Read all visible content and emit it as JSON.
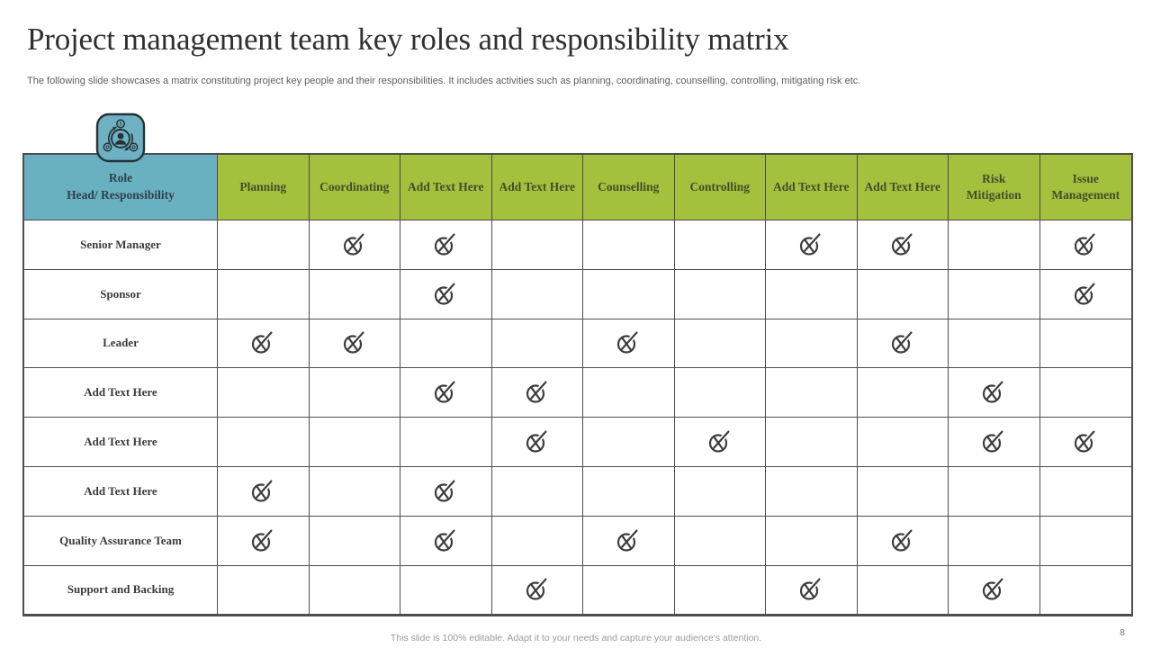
{
  "slide": {
    "title": "Project management team key roles and responsibility matrix",
    "subtitle": "The following slide showcases a matrix constituting project key people and their responsibilities. It includes activities such as planning, coordinating, counselling, controlling, mitigating risk etc.",
    "footer": "This slide is 100% editable. Adapt it to your needs and capture your audience's attention.",
    "page_number": "8"
  },
  "colors": {
    "header_blue": "#69b0c1",
    "header_green": "#a3c13c",
    "header_green_text": "#424d2b",
    "header_blue_text": "#2f4149",
    "grid_border": "#4d4d4d",
    "mark_color": "#3d3d3d",
    "badge_fill": "#6db1c3",
    "badge_stroke": "#263238"
  },
  "icons": {
    "badge": "team-resource-management-icon",
    "mark": "check-cross-circle-icon"
  },
  "table": {
    "corner_header": "Role\nHead/ Responsibility",
    "columns": [
      "Planning",
      "Coordinating",
      "Add Text Here",
      "Add Text Here",
      "Counselling",
      "Controlling",
      "Add Text Here",
      "Add Text Here",
      "Risk Mitigation",
      "Issue Management"
    ],
    "rows": [
      {
        "label": "Senior Manager",
        "marks": [
          0,
          1,
          1,
          0,
          0,
          0,
          1,
          1,
          0,
          1
        ]
      },
      {
        "label": "Sponsor",
        "marks": [
          0,
          0,
          1,
          0,
          0,
          0,
          0,
          0,
          0,
          1
        ]
      },
      {
        "label": "Leader",
        "marks": [
          1,
          1,
          0,
          0,
          1,
          0,
          0,
          1,
          0,
          0
        ]
      },
      {
        "label": "Add Text Here",
        "marks": [
          0,
          0,
          1,
          1,
          0,
          0,
          0,
          0,
          1,
          0
        ]
      },
      {
        "label": "Add Text Here",
        "marks": [
          0,
          0,
          0,
          1,
          0,
          1,
          0,
          0,
          1,
          1
        ]
      },
      {
        "label": "Add Text Here",
        "marks": [
          1,
          0,
          1,
          0,
          0,
          0,
          0,
          0,
          0,
          0
        ]
      },
      {
        "label": "Quality Assurance Team",
        "marks": [
          1,
          0,
          1,
          0,
          1,
          0,
          0,
          1,
          0,
          0
        ]
      },
      {
        "label": "Support and Backing",
        "marks": [
          0,
          0,
          0,
          1,
          0,
          0,
          1,
          0,
          1,
          0
        ]
      }
    ]
  }
}
